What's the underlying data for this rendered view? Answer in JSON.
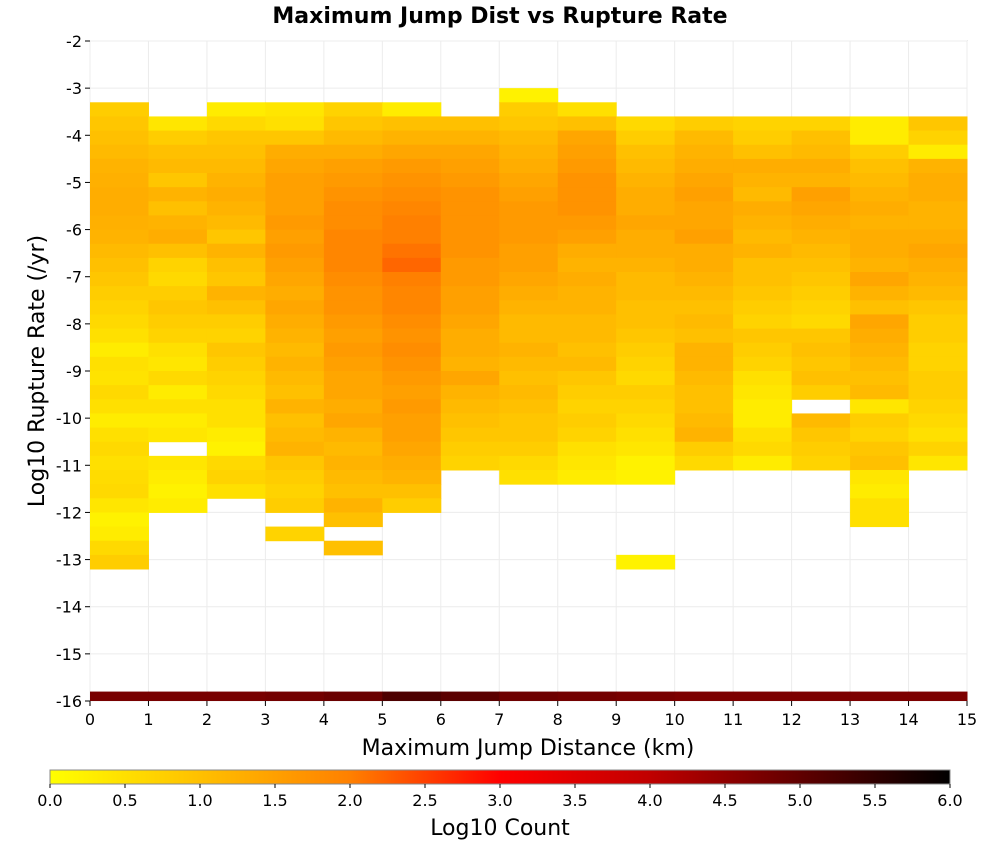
{
  "chart_data": {
    "type": "heatmap",
    "title": "Maximum Jump Dist vs Rupture Rate",
    "xlabel": "Maximum Jump Distance (km)",
    "ylabel": "Log10 Rupture Rate (/yr)",
    "xlim": [
      0,
      15
    ],
    "ylim": [
      -16,
      -2
    ],
    "x_ticks": [
      "0",
      "1",
      "2",
      "3",
      "4",
      "5",
      "6",
      "7",
      "8",
      "9",
      "10",
      "11",
      "12",
      "13",
      "14",
      "15"
    ],
    "y_ticks": [
      "-2",
      "-3",
      "-4",
      "-5",
      "-6",
      "-7",
      "-8",
      "-9",
      "-10",
      "-11",
      "-12",
      "-13",
      "-14",
      "-15",
      "-16"
    ],
    "grid": true,
    "bin_width_x": 1,
    "bin_height_y": 0.3,
    "colorbar": {
      "label": "Log10 Count",
      "range": [
        0,
        6
      ],
      "ticks": [
        "0.0",
        "0.5",
        "1.0",
        "1.5",
        "2.0",
        "2.5",
        "3.0",
        "3.5",
        "4.0",
        "4.5",
        "5.0",
        "5.5",
        "6.0"
      ],
      "stops": [
        {
          "v": 0.0,
          "color": "#ffff00"
        },
        {
          "v": 1.0,
          "color": "#ffc000"
        },
        {
          "v": 2.0,
          "color": "#ff8000"
        },
        {
          "v": 3.0,
          "color": "#ff0000"
        },
        {
          "v": 4.0,
          "color": "#c00000"
        },
        {
          "v": 5.0,
          "color": "#600000"
        },
        {
          "v": 6.0,
          "color": "#000000"
        }
      ]
    },
    "bottom_row": {
      "y": -15.95,
      "values": [
        4.75,
        4.75,
        4.75,
        4.8,
        4.9,
        5.2,
        5.05,
        4.85,
        4.8,
        4.75,
        4.7,
        4.7,
        4.7,
        4.7,
        4.7
      ]
    },
    "cells": [
      {
        "x": 0,
        "y_top": -3.3,
        "values": [
          0.8,
          0.9,
          1.0,
          1.1,
          1.2,
          1.25,
          1.3,
          1.3,
          1.25,
          1.2,
          1.1,
          1.0,
          0.9,
          0.8,
          0.7,
          0.6,
          0.5,
          0.3,
          0.5,
          0.45,
          0.6,
          0.5,
          0.3,
          0.5,
          0.6,
          0.5,
          0.55,
          0.6,
          0.4,
          0.2,
          0.3,
          0.6,
          0.8
        ]
      },
      {
        "x": 1,
        "y_top": -3.6,
        "values": [
          0.4,
          0.8,
          1.0,
          1.1,
          0.9,
          1.2,
          1.0,
          1.2,
          1.3,
          1.0,
          0.7,
          0.6,
          0.8,
          0.9,
          0.8,
          0.7,
          0.5,
          0.4,
          0.6,
          0.3,
          0.5,
          0.3,
          0.4,
          null,
          0.4,
          0.3,
          0.2,
          0.3
        ]
      },
      {
        "x": 2,
        "y_top": -3.3,
        "values": [
          0.3,
          0.6,
          0.9,
          1.0,
          1.1,
          1.2,
          1.3,
          1.2,
          1.1,
          0.9,
          1.2,
          1.0,
          0.9,
          1.2,
          1.0,
          0.8,
          0.7,
          0.9,
          0.8,
          0.7,
          0.6,
          0.5,
          0.5,
          0.3,
          0.2,
          0.6,
          0.7,
          0.5
        ]
      },
      {
        "x": 3,
        "y_top": -3.3,
        "values": [
          0.4,
          0.5,
          0.9,
          1.3,
          1.4,
          1.5,
          1.5,
          1.5,
          1.6,
          1.5,
          1.6,
          1.5,
          1.4,
          1.3,
          1.4,
          1.3,
          1.2,
          1.1,
          1.2,
          1.1,
          1.0,
          1.2,
          1.0,
          1.1,
          1.2,
          0.9,
          0.8,
          0.7,
          0.8,
          null,
          0.7
        ]
      },
      {
        "x": 4,
        "y_top": -3.3,
        "values": [
          0.7,
          0.9,
          1.1,
          1.3,
          1.5,
          1.6,
          1.7,
          1.8,
          1.8,
          1.9,
          1.9,
          1.9,
          1.8,
          1.7,
          1.7,
          1.6,
          1.5,
          1.6,
          1.5,
          1.4,
          1.4,
          1.3,
          1.4,
          1.2,
          1.1,
          1.2,
          1.1,
          1.0,
          1.2,
          1.0,
          null,
          1.0
        ]
      },
      {
        "x": 5,
        "y_top": -3.3,
        "values": [
          0.3,
          1.0,
          1.2,
          1.4,
          1.6,
          1.7,
          1.8,
          1.9,
          2.0,
          2.0,
          2.1,
          2.2,
          2.0,
          1.9,
          1.9,
          1.8,
          1.7,
          1.8,
          1.7,
          1.6,
          1.5,
          1.6,
          1.5,
          1.5,
          1.4,
          1.3,
          1.2,
          1.0,
          0.8
        ]
      },
      {
        "x": 6,
        "y_top": -3.6,
        "values": [
          1.0,
          1.2,
          1.4,
          1.5,
          1.6,
          1.7,
          1.7,
          1.7,
          1.7,
          1.7,
          1.6,
          1.6,
          1.5,
          1.5,
          1.4,
          1.3,
          1.3,
          1.2,
          1.4,
          1.2,
          1.1,
          1.0,
          0.9,
          0.8,
          0.7
        ]
      },
      {
        "x": 7,
        "y_top": -3.0,
        "values": [
          0.2,
          0.8,
          0.9,
          1.1,
          1.2,
          1.3,
          1.4,
          1.5,
          1.6,
          1.6,
          1.6,
          1.5,
          1.5,
          1.4,
          1.3,
          1.2,
          1.1,
          1.1,
          1.2,
          1.1,
          1.0,
          1.1,
          1.0,
          0.9,
          0.9,
          0.8,
          0.6,
          0.5
        ]
      },
      {
        "x": 8,
        "y_top": -3.3,
        "values": [
          0.5,
          1.0,
          1.4,
          1.5,
          1.6,
          1.7,
          1.7,
          1.7,
          1.6,
          1.5,
          1.3,
          1.2,
          1.3,
          1.2,
          1.2,
          1.1,
          1.1,
          1.0,
          1.1,
          0.9,
          0.8,
          0.7,
          0.8,
          0.7,
          0.5,
          0.4,
          0.3
        ]
      },
      {
        "x": 9,
        "y_top": -3.6,
        "values": [
          0.6,
          0.8,
          1.0,
          1.1,
          1.2,
          1.3,
          1.3,
          1.4,
          1.3,
          1.3,
          1.2,
          1.1,
          1.1,
          1.0,
          1.0,
          0.9,
          0.8,
          0.7,
          0.6,
          0.8,
          0.7,
          0.6,
          0.5,
          0.4,
          0.2,
          0.2,
          null,
          null,
          null,
          null,
          null,
          0.2
        ]
      },
      {
        "x": 10,
        "y_top": -3.6,
        "values": [
          0.8,
          1.1,
          1.2,
          1.3,
          1.4,
          1.5,
          1.4,
          1.4,
          1.5,
          1.3,
          1.3,
          1.2,
          1.1,
          1.0,
          1.1,
          1.0,
          1.2,
          1.2,
          1.1,
          1.0,
          1.0,
          1.1,
          1.2,
          0.8,
          0.6
        ]
      },
      {
        "x": 11,
        "y_top": -3.6,
        "values": [
          0.7,
          0.8,
          1.0,
          1.3,
          1.2,
          1.1,
          1.3,
          1.2,
          1.1,
          1.2,
          1.0,
          1.0,
          0.9,
          0.8,
          0.7,
          0.9,
          0.8,
          0.7,
          0.5,
          0.4,
          0.3,
          0.3,
          0.5,
          0.6,
          0.3
        ]
      },
      {
        "x": 12,
        "y_top": -3.6,
        "values": [
          0.7,
          1.0,
          1.1,
          1.3,
          1.2,
          1.5,
          1.4,
          1.3,
          1.2,
          1.1,
          1.0,
          0.9,
          0.8,
          0.7,
          0.6,
          0.9,
          1.0,
          0.9,
          1.0,
          0.8,
          null,
          1.1,
          0.9,
          0.8,
          0.7
        ]
      },
      {
        "x": 13,
        "y_top": -3.6,
        "values": [
          0.3,
          0.3,
          0.8,
          1.0,
          1.1,
          1.2,
          1.3,
          1.2,
          1.3,
          1.3,
          1.2,
          1.4,
          1.2,
          1.0,
          1.4,
          1.3,
          1.2,
          1.1,
          1.0,
          1.1,
          0.4,
          0.8,
          0.7,
          0.9,
          1.0,
          0.4,
          0.3,
          0.5,
          0.5
        ]
      },
      {
        "x": 14,
        "y_top": -3.6,
        "values": [
          0.9,
          0.7,
          0.3,
          1.2,
          1.3,
          1.3,
          1.2,
          1.2,
          1.3,
          1.4,
          1.3,
          1.2,
          1.1,
          0.9,
          0.8,
          0.8,
          0.7,
          0.7,
          0.8,
          0.8,
          0.7,
          0.6,
          0.5,
          0.7,
          0.4
        ]
      }
    ]
  }
}
